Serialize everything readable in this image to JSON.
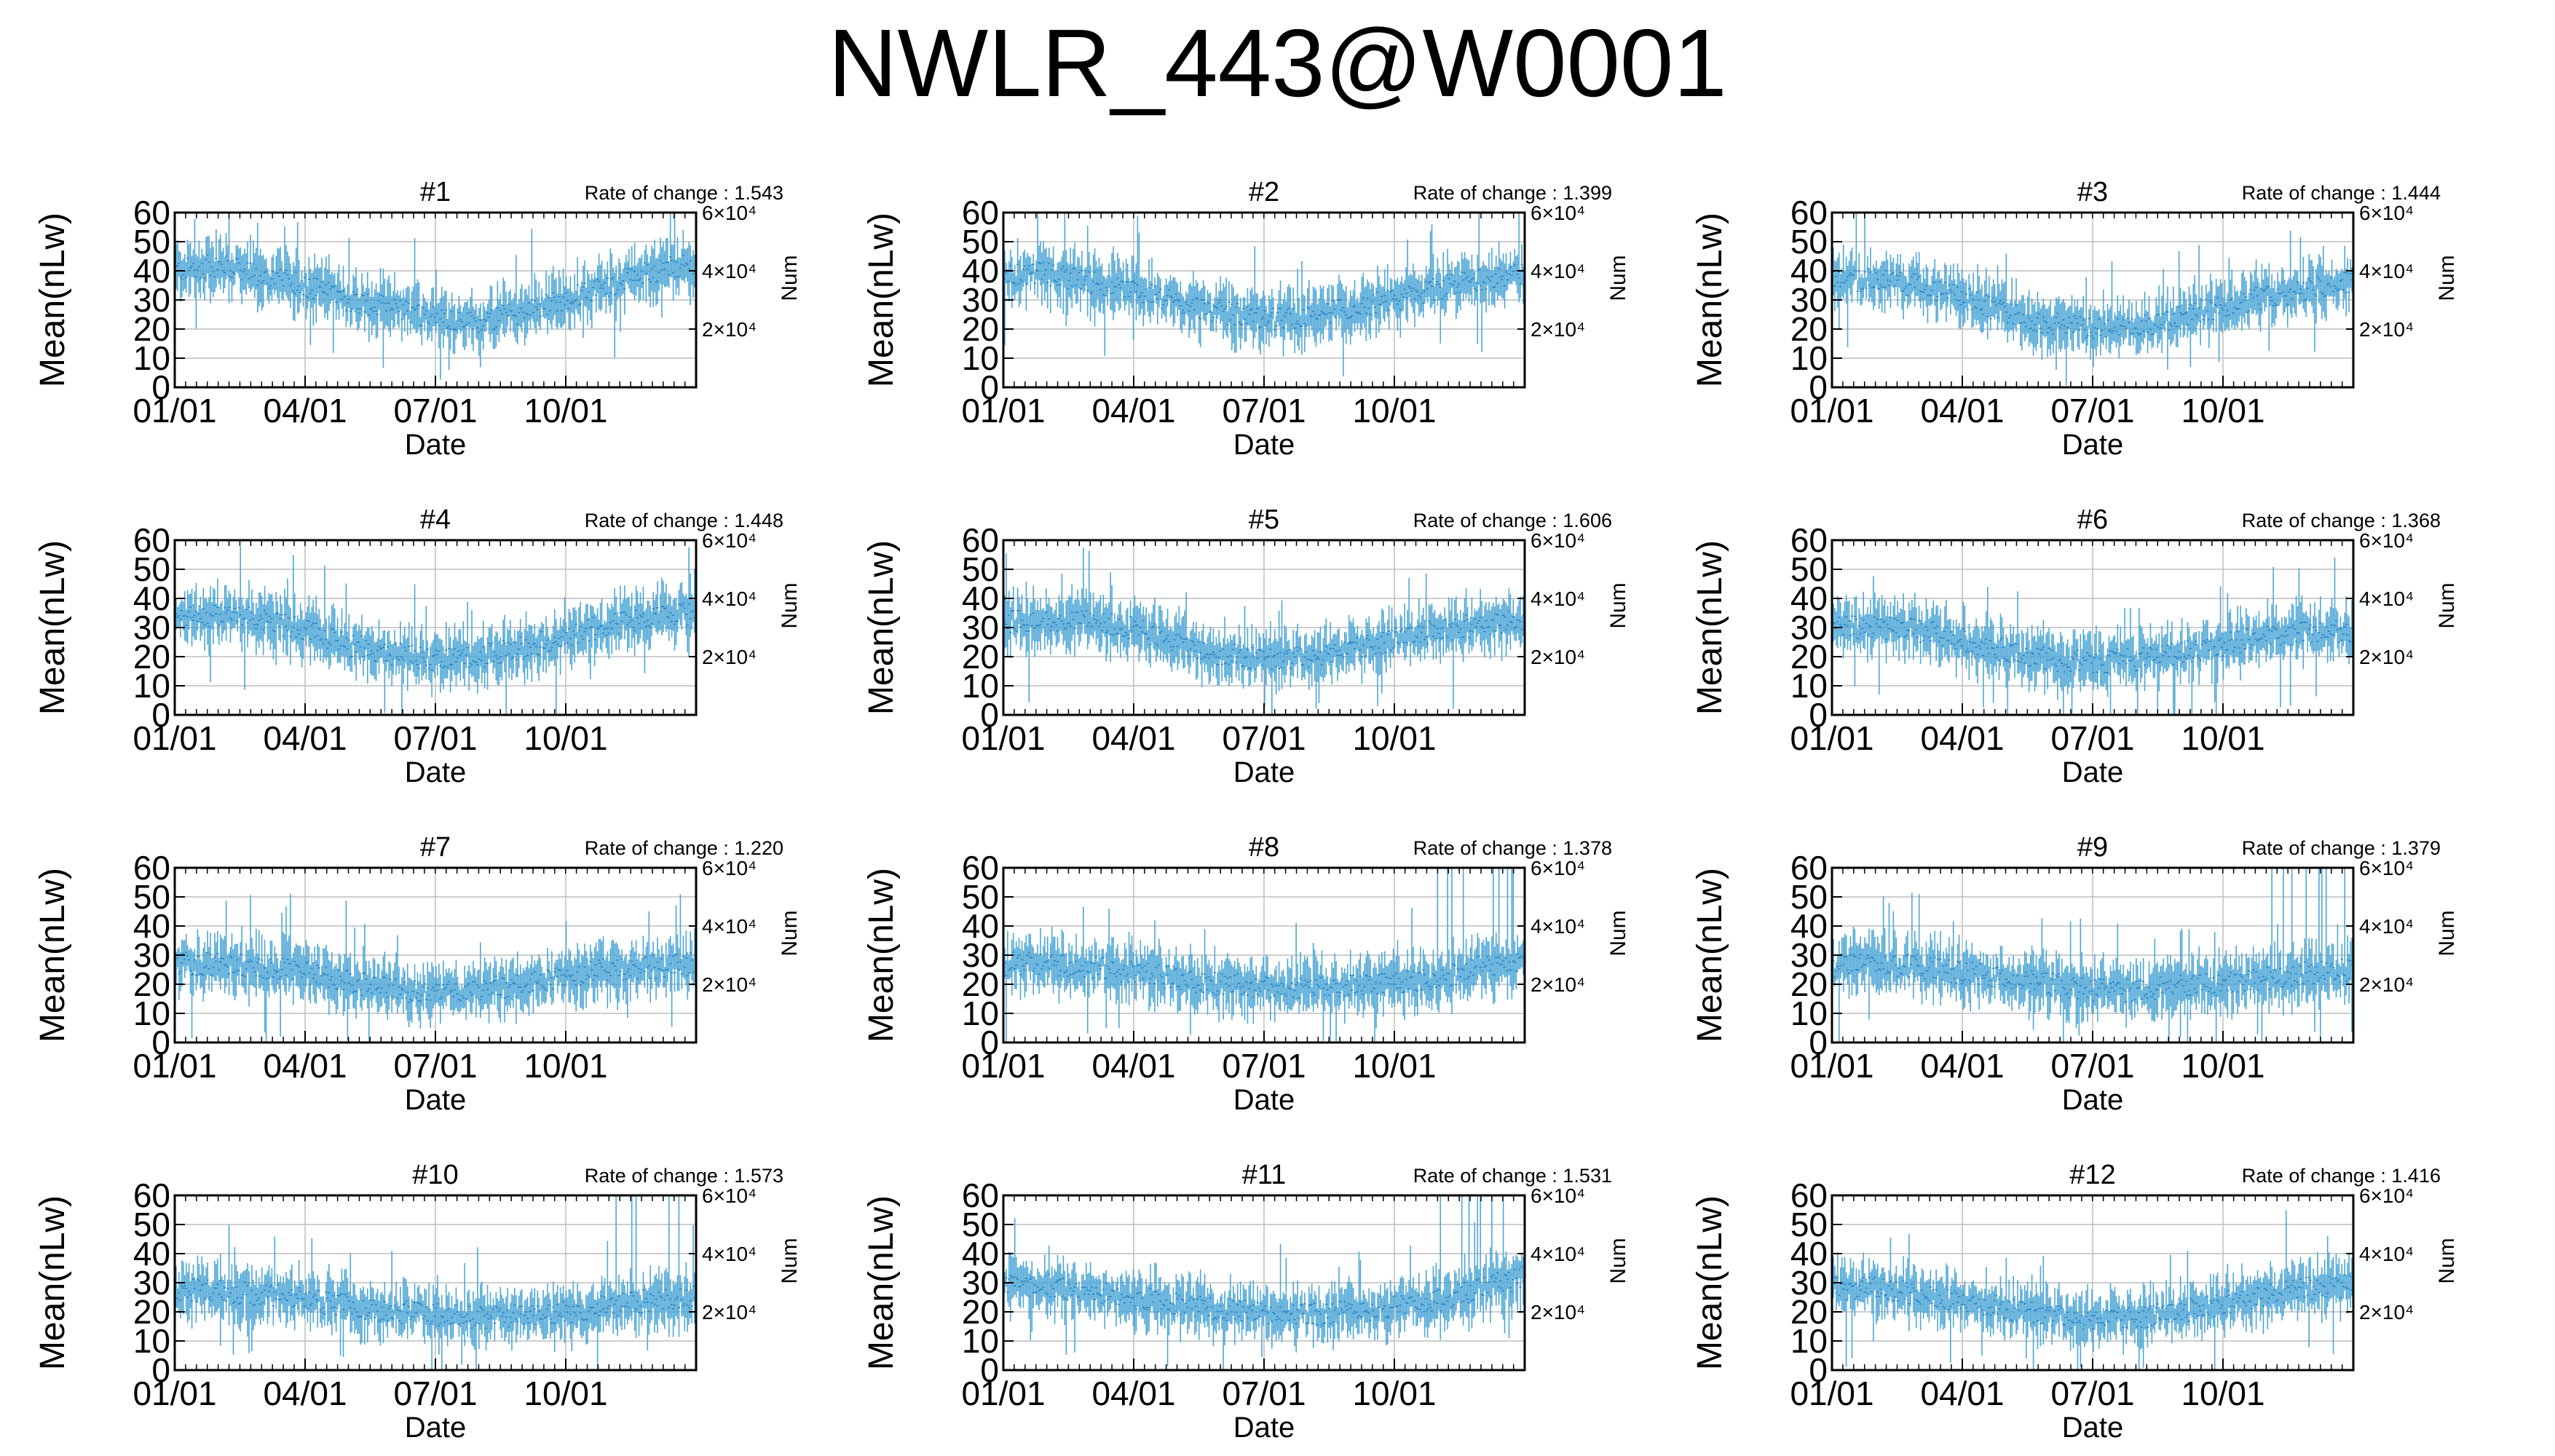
{
  "figure": {
    "title": "NWLR_443@W0001"
  },
  "chart_data": [
    {
      "type": "line",
      "title": "#1",
      "rate_label": "Rate of change : 1.543",
      "xlabel": "Date",
      "ylabel": "Mean(nLw)",
      "y2label": "Num",
      "x_tick_labels": [
        "01/01",
        "04/01",
        "07/01",
        "10/01"
      ],
      "y_ticks": [
        0,
        10,
        20,
        30,
        40,
        50,
        60
      ],
      "ylim": [
        0,
        60
      ],
      "y2_tick_labels": [
        "2×10⁴",
        "4×10⁴",
        "6×10⁴"
      ],
      "y2_ticks": [
        20000,
        40000,
        60000
      ],
      "y2lim": [
        0,
        60000
      ],
      "grid": true,
      "series": [
        {
          "color": "#4da6d6",
          "x_months": [
            0,
            1,
            2,
            3,
            4,
            5,
            6,
            7,
            8,
            9,
            10,
            11,
            12
          ],
          "values": [
            40,
            42,
            38,
            35,
            30,
            27,
            24,
            22,
            26,
            30,
            35,
            40,
            42
          ]
        }
      ]
    },
    {
      "type": "line",
      "title": "#2",
      "rate_label": "Rate of change : 1.399",
      "xlabel": "Date",
      "ylabel": "Mean(nLw)",
      "y2label": "Num",
      "x_tick_labels": [
        "01/01",
        "04/01",
        "07/01",
        "10/01"
      ],
      "y_ticks": [
        0,
        10,
        20,
        30,
        40,
        50,
        60
      ],
      "ylim": [
        0,
        60
      ],
      "y2_tick_labels": [
        "2×10⁴",
        "4×10⁴",
        "6×10⁴"
      ],
      "y2_ticks": [
        20000,
        40000,
        60000
      ],
      "y2lim": [
        0,
        60000
      ],
      "grid": true,
      "series": [
        {
          "color": "#4da6d6",
          "x_months": [
            0,
            1,
            2,
            3,
            4,
            5,
            6,
            7,
            8,
            9,
            10,
            11,
            12
          ],
          "values": [
            38,
            39,
            36,
            33,
            29,
            26,
            23,
            24,
            27,
            30,
            34,
            37,
            39
          ]
        }
      ]
    },
    {
      "type": "line",
      "title": "#3",
      "rate_label": "Rate of change : 1.444",
      "xlabel": "Date",
      "ylabel": "Mean(nLw)",
      "y2label": "Num",
      "x_tick_labels": [
        "01/01",
        "04/01",
        "07/01",
        "10/01"
      ],
      "y_ticks": [
        0,
        10,
        20,
        30,
        40,
        50,
        60
      ],
      "ylim": [
        0,
        60
      ],
      "y2_tick_labels": [
        "2×10⁴",
        "4×10⁴",
        "6×10⁴"
      ],
      "y2_ticks": [
        20000,
        40000,
        60000
      ],
      "y2lim": [
        0,
        60000
      ],
      "grid": true,
      "series": [
        {
          "color": "#4da6d6",
          "x_months": [
            0,
            1,
            2,
            3,
            4,
            5,
            6,
            7,
            8,
            9,
            10,
            11,
            12
          ],
          "values": [
            36,
            37,
            35,
            31,
            25,
            22,
            20,
            21,
            24,
            28,
            31,
            34,
            36
          ]
        }
      ]
    },
    {
      "type": "line",
      "title": "#4",
      "rate_label": "Rate of change : 1.448",
      "xlabel": "Date",
      "ylabel": "Mean(nLw)",
      "y2label": "Num",
      "x_tick_labels": [
        "01/01",
        "04/01",
        "07/01",
        "10/01"
      ],
      "y_ticks": [
        0,
        10,
        20,
        30,
        40,
        50,
        60
      ],
      "ylim": [
        0,
        60
      ],
      "y2_tick_labels": [
        "2×10⁴",
        "4×10⁴",
        "6×10⁴"
      ],
      "y2_ticks": [
        20000,
        40000,
        60000
      ],
      "y2lim": [
        0,
        60000
      ],
      "grid": true,
      "series": [
        {
          "color": "#4da6d6",
          "x_months": [
            0,
            1,
            2,
            3,
            4,
            5,
            6,
            7,
            8,
            9,
            10,
            11,
            12
          ],
          "values": [
            33,
            34,
            33,
            29,
            24,
            21,
            19,
            20,
            23,
            27,
            31,
            33,
            35
          ]
        }
      ]
    },
    {
      "type": "line",
      "title": "#5",
      "rate_label": "Rate of change : 1.606",
      "xlabel": "Date",
      "ylabel": "Mean(nLw)",
      "y2label": "Num",
      "x_tick_labels": [
        "01/01",
        "04/01",
        "07/01",
        "10/01"
      ],
      "y_ticks": [
        0,
        10,
        20,
        30,
        40,
        50,
        60
      ],
      "ylim": [
        0,
        60
      ],
      "y2_tick_labels": [
        "2×10⁴",
        "4×10⁴",
        "6×10⁴"
      ],
      "y2_ticks": [
        20000,
        40000,
        60000
      ],
      "y2lim": [
        0,
        60000
      ],
      "grid": true,
      "series": [
        {
          "color": "#4da6d6",
          "x_months": [
            0,
            1,
            2,
            3,
            4,
            5,
            6,
            7,
            8,
            9,
            10,
            11,
            12
          ],
          "values": [
            32,
            33,
            32,
            30,
            25,
            21,
            19,
            20,
            22,
            26,
            29,
            31,
            33
          ]
        }
      ]
    },
    {
      "type": "line",
      "title": "#6",
      "rate_label": "Rate of change : 1.368",
      "xlabel": "Date",
      "ylabel": "Mean(nLw)",
      "y2label": "Num",
      "x_tick_labels": [
        "01/01",
        "04/01",
        "07/01",
        "10/01"
      ],
      "y_ticks": [
        0,
        10,
        20,
        30,
        40,
        50,
        60
      ],
      "ylim": [
        0,
        60
      ],
      "y2_tick_labels": [
        "2×10⁴",
        "4×10⁴",
        "6×10⁴"
      ],
      "y2_ticks": [
        20000,
        40000,
        60000
      ],
      "y2lim": [
        0,
        60000
      ],
      "grid": true,
      "series": [
        {
          "color": "#4da6d6",
          "x_months": [
            0,
            1,
            2,
            3,
            4,
            5,
            6,
            7,
            8,
            9,
            10,
            11,
            12
          ],
          "values": [
            30,
            30,
            29,
            26,
            22,
            19,
            18,
            19,
            21,
            24,
            27,
            28,
            29
          ]
        }
      ]
    },
    {
      "type": "line",
      "title": "#7",
      "rate_label": "Rate of change : 1.220",
      "xlabel": "Date",
      "ylabel": "Mean(nLw)",
      "y2label": "Num",
      "x_tick_labels": [
        "01/01",
        "04/01",
        "07/01",
        "10/01"
      ],
      "y_ticks": [
        0,
        10,
        20,
        30,
        40,
        50,
        60
      ],
      "ylim": [
        0,
        60
      ],
      "y2_tick_labels": [
        "2×10⁴",
        "4×10⁴",
        "6×10⁴"
      ],
      "y2_ticks": [
        20000,
        40000,
        60000
      ],
      "y2lim": [
        0,
        60000
      ],
      "grid": true,
      "series": [
        {
          "color": "#4da6d6",
          "x_months": [
            0,
            1,
            2,
            3,
            4,
            5,
            6,
            7,
            8,
            9,
            10,
            11,
            12
          ],
          "values": [
            27,
            27,
            26,
            24,
            21,
            18,
            17,
            18,
            20,
            23,
            25,
            26,
            27
          ]
        }
      ]
    },
    {
      "type": "line",
      "title": "#8",
      "rate_label": "Rate of change : 1.378",
      "xlabel": "Date",
      "ylabel": "Mean(nLw)",
      "y2label": "Num",
      "x_tick_labels": [
        "01/01",
        "04/01",
        "07/01",
        "10/01"
      ],
      "y_ticks": [
        0,
        10,
        20,
        30,
        40,
        50,
        60
      ],
      "ylim": [
        0,
        60
      ],
      "y2_tick_labels": [
        "2×10⁴",
        "4×10⁴",
        "6×10⁴"
      ],
      "y2_ticks": [
        20000,
        40000,
        60000
      ],
      "y2lim": [
        0,
        60000
      ],
      "grid": true,
      "series": [
        {
          "color": "#4da6d6",
          "x_months": [
            0,
            1,
            2,
            3,
            4,
            5,
            6,
            7,
            8,
            9,
            10,
            11,
            12
          ],
          "values": [
            27,
            27,
            26,
            24,
            22,
            20,
            19,
            19,
            20,
            21,
            22,
            26,
            27
          ]
        }
      ]
    },
    {
      "type": "line",
      "title": "#9",
      "rate_label": "Rate of change : 1.379",
      "xlabel": "Date",
      "ylabel": "Mean(nLw)",
      "y2label": "Num",
      "x_tick_labels": [
        "01/01",
        "04/01",
        "07/01",
        "10/01"
      ],
      "y_ticks": [
        0,
        10,
        20,
        30,
        40,
        50,
        60
      ],
      "ylim": [
        0,
        60
      ],
      "y2_tick_labels": [
        "2×10⁴",
        "4×10⁴",
        "6×10⁴"
      ],
      "y2_ticks": [
        20000,
        40000,
        60000
      ],
      "y2lim": [
        0,
        60000
      ],
      "grid": true,
      "series": [
        {
          "color": "#4da6d6",
          "x_months": [
            0,
            1,
            2,
            3,
            4,
            5,
            6,
            7,
            8,
            9,
            10,
            11,
            12
          ],
          "values": [
            26,
            27,
            26,
            24,
            22,
            20,
            18,
            18,
            19,
            20,
            22,
            24,
            25
          ]
        }
      ]
    },
    {
      "type": "line",
      "title": "#10",
      "rate_label": "Rate of change : 1.573",
      "xlabel": "Date",
      "ylabel": "Mean(nLw)",
      "y2label": "Num",
      "x_tick_labels": [
        "01/01",
        "04/01",
        "07/01",
        "10/01"
      ],
      "y_ticks": [
        0,
        10,
        20,
        30,
        40,
        50,
        60
      ],
      "ylim": [
        0,
        60
      ],
      "y2_tick_labels": [
        "2×10⁴",
        "4×10⁴",
        "6×10⁴"
      ],
      "y2_ticks": [
        20000,
        40000,
        60000
      ],
      "y2lim": [
        0,
        60000
      ],
      "grid": true,
      "series": [
        {
          "color": "#4da6d6",
          "x_months": [
            0,
            1,
            2,
            3,
            4,
            5,
            6,
            7,
            8,
            9,
            10,
            11,
            12
          ],
          "values": [
            28,
            27,
            26,
            24,
            22,
            20,
            19,
            18,
            19,
            20,
            22,
            24,
            25
          ]
        }
      ]
    },
    {
      "type": "line",
      "title": "#11",
      "rate_label": "Rate of change : 1.531",
      "xlabel": "Date",
      "ylabel": "Mean(nLw)",
      "y2label": "Num",
      "x_tick_labels": [
        "01/01",
        "04/01",
        "07/01",
        "10/01"
      ],
      "y_ticks": [
        0,
        10,
        20,
        30,
        40,
        50,
        60
      ],
      "ylim": [
        0,
        60
      ],
      "y2_tick_labels": [
        "2×10⁴",
        "4×10⁴",
        "6×10⁴"
      ],
      "y2_ticks": [
        20000,
        40000,
        60000
      ],
      "y2lim": [
        0,
        60000
      ],
      "grid": true,
      "series": [
        {
          "color": "#4da6d6",
          "x_months": [
            0,
            1,
            2,
            3,
            4,
            5,
            6,
            7,
            8,
            9,
            10,
            11,
            12
          ],
          "values": [
            29,
            29,
            27,
            25,
            23,
            21,
            19,
            19,
            20,
            22,
            24,
            28,
            32
          ]
        }
      ]
    },
    {
      "type": "line",
      "title": "#12",
      "rate_label": "Rate of change : 1.416",
      "xlabel": "Date",
      "ylabel": "Mean(nLw)",
      "y2label": "Num",
      "x_tick_labels": [
        "01/01",
        "04/01",
        "07/01",
        "10/01"
      ],
      "y_ticks": [
        0,
        10,
        20,
        30,
        40,
        50,
        60
      ],
      "ylim": [
        0,
        60
      ],
      "y2_tick_labels": [
        "2×10⁴",
        "4×10⁴",
        "6×10⁴"
      ],
      "y2_ticks": [
        20000,
        40000,
        60000
      ],
      "y2lim": [
        0,
        60000
      ],
      "grid": true,
      "series": [
        {
          "color": "#4da6d6",
          "x_months": [
            0,
            1,
            2,
            3,
            4,
            5,
            6,
            7,
            8,
            9,
            10,
            11,
            12
          ],
          "values": [
            28,
            28,
            26,
            24,
            21,
            19,
            17,
            18,
            20,
            23,
            26,
            28,
            29
          ]
        }
      ]
    }
  ]
}
